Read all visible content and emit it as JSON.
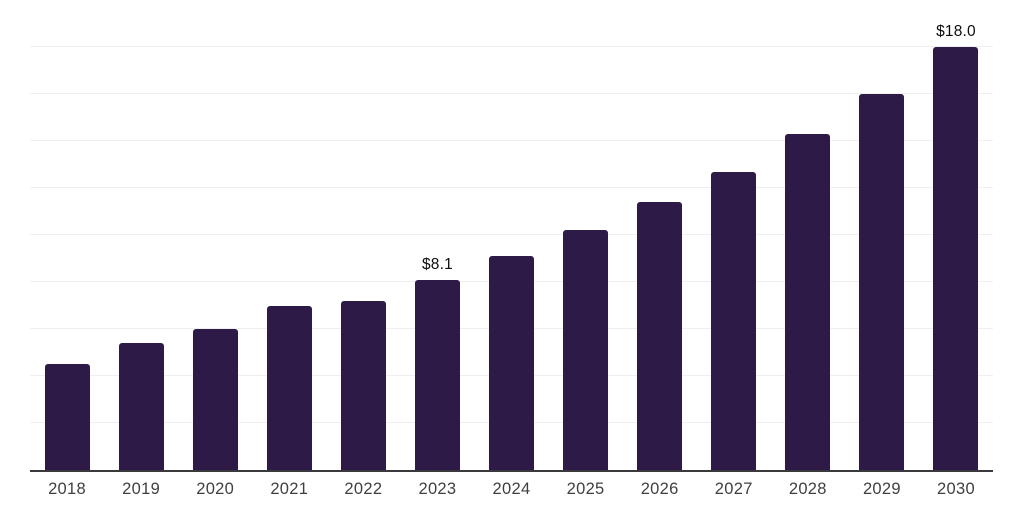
{
  "chart_data": {
    "type": "bar",
    "title": "",
    "xlabel": "",
    "ylabel": "",
    "legend": "none",
    "grid": "horizontal",
    "ylim": [
      0,
      20
    ],
    "gridline_step": 2,
    "categories": [
      "2018",
      "2019",
      "2020",
      "2021",
      "2022",
      "2023",
      "2024",
      "2025",
      "2026",
      "2027",
      "2028",
      "2029",
      "2030"
    ],
    "values": [
      4.5,
      5.4,
      6.0,
      7.0,
      7.2,
      8.1,
      9.1,
      10.2,
      11.4,
      12.7,
      14.3,
      16.0,
      18.0
    ],
    "value_labels": [
      "",
      "",
      "",
      "",
      "",
      "$8.1",
      "",
      "",
      "",
      "",
      "",
      "",
      "$18.0"
    ],
    "colors": {
      "bar_fill": "#2e1a47",
      "gridline": "#efefef",
      "axis_line": "#3a3a3c",
      "tick_label": "#404040",
      "value_label": "#0e0e0e",
      "background": "#ffffff"
    }
  }
}
